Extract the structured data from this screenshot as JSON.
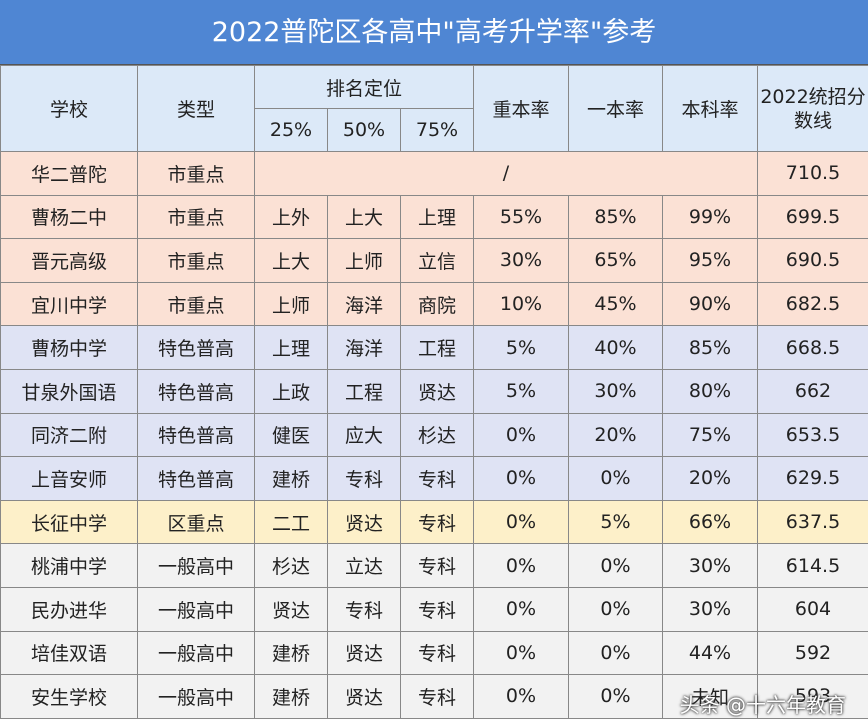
{
  "title": "2022普陀区各高中\"高考升学率\"参考",
  "header": {
    "school": "学校",
    "type": "类型",
    "rank": "排名定位",
    "rank_cols": [
      "25%",
      "50%",
      "75%"
    ],
    "key_rate": "重本率",
    "tier1_rate": "一本率",
    "bachelor_rate": "本科率",
    "score": "2022统招分数线"
  },
  "table": {
    "rows": [
      [
        "华二普陀",
        "市重点",
        "/",
        "710.5"
      ],
      [
        "曹杨二中",
        "市重点",
        "上外",
        "上大",
        "上理",
        "55%",
        "85%",
        "99%",
        "699.5"
      ],
      [
        "晋元高级",
        "市重点",
        "上大",
        "上师",
        "立信",
        "30%",
        "65%",
        "95%",
        "690.5"
      ],
      [
        "宜川中学",
        "市重点",
        "上师",
        "海洋",
        "商院",
        "10%",
        "45%",
        "90%",
        "682.5"
      ],
      [
        "曹杨中学",
        "特色普高",
        "上理",
        "海洋",
        "工程",
        "5%",
        "40%",
        "85%",
        "668.5"
      ],
      [
        "甘泉外国语",
        "特色普高",
        "上政",
        "工程",
        "贤达",
        "5%",
        "30%",
        "80%",
        "662"
      ],
      [
        "同济二附",
        "特色普高",
        "健医",
        "应大",
        "杉达",
        "0%",
        "20%",
        "75%",
        "653.5"
      ],
      [
        "上音安师",
        "特色普高",
        "建桥",
        "专科",
        "专科",
        "0%",
        "0%",
        "20%",
        "629.5"
      ],
      [
        "长征中学",
        "区重点",
        "二工",
        "贤达",
        "专科",
        "0%",
        "5%",
        "66%",
        "637.5"
      ],
      [
        "桃浦中学",
        "一般高中",
        "杉达",
        "立达",
        "专科",
        "0%",
        "0%",
        "30%",
        "614.5"
      ],
      [
        "民办进华",
        "一般高中",
        "贤达",
        "专科",
        "专科",
        "0%",
        "0%",
        "30%",
        "604"
      ],
      [
        "培佳双语",
        "一般高中",
        "建桥",
        "贤达",
        "专科",
        "0%",
        "0%",
        "44%",
        "592"
      ],
      [
        "安生学校",
        "一般高中",
        "建桥",
        "贤达",
        "专科",
        "0%",
        "0%",
        "未知",
        "593"
      ]
    ]
  },
  "watermark": "头条 @十六年教育"
}
